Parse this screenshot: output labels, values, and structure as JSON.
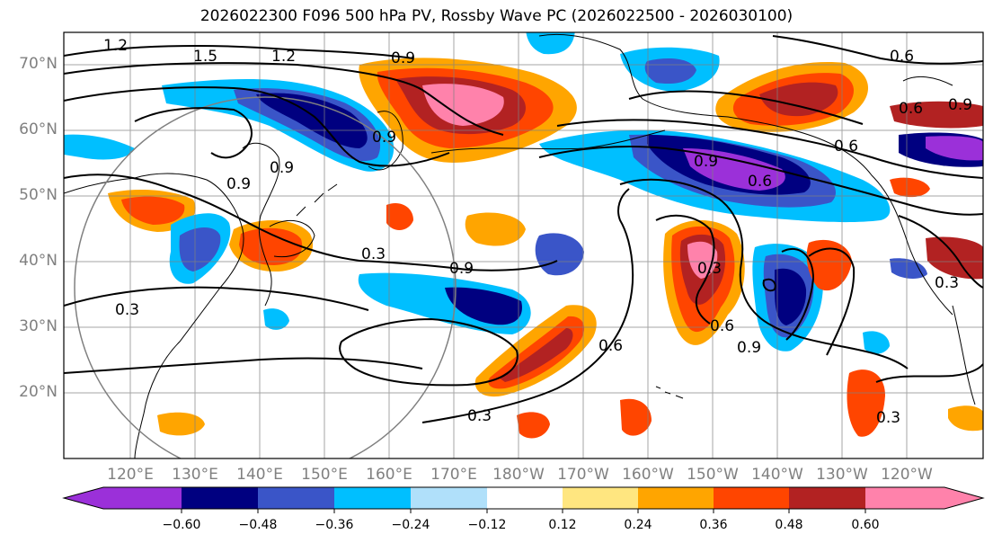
{
  "title": "2026022300 F096 500 hPa PV, Rossby Wave PC (2026022500 - 2026030100)",
  "map": {
    "lat_labels": [
      "70°N",
      "60°N",
      "50°N",
      "40°N",
      "30°N",
      "20°N"
    ],
    "lon_labels": [
      "120°E",
      "130°E",
      "140°E",
      "150°E",
      "160°E",
      "170°E",
      "180°W",
      "170°W",
      "160°W",
      "150°W",
      "140°W",
      "130°W",
      "120°W"
    ],
    "contour_labels": [
      "1.2",
      "1.5",
      "1.2",
      "0.9",
      "0.6",
      "0.6",
      "0.9",
      "0.9",
      "0.9",
      "0.6",
      "0.9",
      "0.3",
      "0.9",
      "0.3",
      "0.6",
      "0.3",
      "0.6",
      "0.9",
      "0.3",
      "0.3",
      "0.3",
      "0.9",
      "0.6"
    ]
  },
  "colorbar": {
    "colors": [
      "#9b30d9",
      "#000080",
      "#3a55c8",
      "#00bfff",
      "#b0e0fa",
      "#ffffff",
      "#ffe680",
      "#ffa500",
      "#ff4500",
      "#b22222",
      "#ff82ab"
    ],
    "ticks": [
      "−0.60",
      "−0.48",
      "−0.36",
      "−0.24",
      "−0.12",
      "0.12",
      "0.24",
      "0.36",
      "0.48",
      "0.60"
    ]
  }
}
